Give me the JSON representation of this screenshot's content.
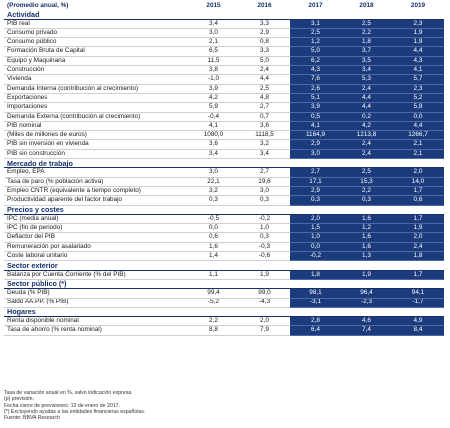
{
  "header": {
    "label": "(Promedio anual, %)",
    "years": [
      "2015",
      "2016",
      "2017",
      "2018",
      "2019"
    ]
  },
  "colors": {
    "forecast_bg": "#1b3b7d",
    "section_text": "#16306e"
  },
  "rows": [
    {
      "type": "section",
      "label": "Actividad"
    },
    {
      "type": "data",
      "level": 0,
      "label": "PIB real",
      "values": [
        "3,4",
        "3,3",
        "3,1",
        "2,5",
        "2,3"
      ]
    },
    {
      "type": "data",
      "level": 1,
      "label": "Consumo privado",
      "values": [
        "3,0",
        "2,9",
        "2,5",
        "2,2",
        "1,9"
      ]
    },
    {
      "type": "data",
      "level": 1,
      "label": "Consumo público",
      "values": [
        "2,1",
        "0,8",
        "1,2",
        "1,8",
        "1,9"
      ]
    },
    {
      "type": "data",
      "level": 1,
      "label": "Formación Bruta de Capital",
      "values": [
        "6,5",
        "3,3",
        "5,0",
        "3,7",
        "4,4"
      ]
    },
    {
      "type": "data",
      "level": 2,
      "label": "Equipo y Maquinaria",
      "values": [
        "11,5",
        "5,0",
        "6,2",
        "3,5",
        "4,3"
      ]
    },
    {
      "type": "data",
      "level": 2,
      "label": "Construcción",
      "values": [
        "3,8",
        "2,4",
        "4,3",
        "3,4",
        "4,1"
      ]
    },
    {
      "type": "data",
      "level": 2,
      "label": "Vivienda",
      "values": [
        "-1,0",
        "4,4",
        "7,6",
        "5,3",
        "5,7"
      ]
    },
    {
      "type": "data",
      "level": 0,
      "label": "Demanda Interna (contribución al crecimiento)",
      "values": [
        "3,9",
        "2,5",
        "2,6",
        "2,4",
        "2,3"
      ]
    },
    {
      "type": "data",
      "level": 1,
      "label": "Exportaciones",
      "values": [
        "4,2",
        "4,8",
        "5,1",
        "4,4",
        "5,2"
      ]
    },
    {
      "type": "data",
      "level": 1,
      "label": "Importaciones",
      "values": [
        "5,9",
        "2,7",
        "3,9",
        "4,4",
        "5,8"
      ]
    },
    {
      "type": "data",
      "level": 0,
      "label": "Demanda Externa (contribución al crecimiento)",
      "values": [
        "-0,4",
        "0,7",
        "0,5",
        "0,2",
        "0,0"
      ]
    },
    {
      "type": "data",
      "level": 0,
      "label": "PIB nominal",
      "values": [
        "4,1",
        "3,6",
        "4,1",
        "4,2",
        "4,4"
      ]
    },
    {
      "type": "data",
      "level": 1,
      "label": "(Miles de millones de euros)",
      "values": [
        "1080,0",
        "1118,5",
        "1164,9",
        "1213,8",
        "1266,7"
      ]
    },
    {
      "type": "data",
      "level": 0,
      "label": "PIB sin inversión en vivienda",
      "values": [
        "3,6",
        "3,2",
        "2,9",
        "2,4",
        "2,1"
      ]
    },
    {
      "type": "data",
      "level": 0,
      "label": "PIB sin construcción",
      "values": [
        "3,4",
        "3,4",
        "3,0",
        "2,4",
        "2,1"
      ]
    },
    {
      "type": "section",
      "label": "Mercado de trabajo"
    },
    {
      "type": "data",
      "level": 0,
      "label": "Empleo, EPA",
      "values": [
        "3,0",
        "2,7",
        "2,7",
        "2,5",
        "2,0"
      ]
    },
    {
      "type": "data",
      "level": 0,
      "label": "Tasa de paro (% población activa)",
      "values": [
        "22,1",
        "19,6",
        "17,1",
        "15,3",
        "14,0"
      ]
    },
    {
      "type": "data",
      "level": 0,
      "label": "Empleo CNTR (equivalente a tiempo completo)",
      "values": [
        "3,2",
        "3,0",
        "2,9",
        "2,2",
        "1,7"
      ]
    },
    {
      "type": "data",
      "level": 0,
      "label": "Productividad aparente del factor trabajo",
      "values": [
        "0,3",
        "0,3",
        "0,3",
        "0,3",
        "0,6"
      ]
    },
    {
      "type": "section",
      "label": "Precios y costes"
    },
    {
      "type": "data",
      "level": 0,
      "label": "IPC (media anual)",
      "values": [
        "-0,5",
        "-0,2",
        "2,0",
        "1,6",
        "1,7"
      ]
    },
    {
      "type": "data",
      "level": 0,
      "label": "IPC (fin de periodo)",
      "values": [
        "0,0",
        "1,0",
        "1,5",
        "1,2",
        "1,9"
      ]
    },
    {
      "type": "data",
      "level": 0,
      "label": "Deflactor del PIB",
      "values": [
        "0,6",
        "0,3",
        "1,0",
        "1,6",
        "2,0"
      ]
    },
    {
      "type": "data",
      "level": 0,
      "label": "Remuneración por asalariado",
      "values": [
        "1,6",
        "-0,3",
        "0,0",
        "1,6",
        "2,4"
      ]
    },
    {
      "type": "data",
      "level": 0,
      "label": "Coste laboral unitario",
      "values": [
        "1,4",
        "-0,6",
        "-0,2",
        "1,3",
        "1,8"
      ]
    },
    {
      "type": "section",
      "label": "Sector exterior"
    },
    {
      "type": "data",
      "level": 0,
      "label": "Balanza por Cuenta Corriente (% del PIB)",
      "values": [
        "1,1",
        "1,9",
        "1,8",
        "1,9",
        "1,7"
      ]
    },
    {
      "type": "section",
      "label": "Sector público (*)"
    },
    {
      "type": "data",
      "level": 0,
      "label": "Deuda (% PIB)",
      "values": [
        "99,4",
        "99,0",
        "98,1",
        "96,4",
        "94,1"
      ]
    },
    {
      "type": "data",
      "level": 0,
      "label": "Saldo AA.PP. (% PIB)",
      "values": [
        "-5,2",
        "-4,3",
        "-3,1",
        "-2,3",
        "-1,7"
      ]
    },
    {
      "type": "section",
      "label": "Hogares"
    },
    {
      "type": "data",
      "level": 0,
      "label": "Renta disponible nominal",
      "values": [
        "2,2",
        "2,0",
        "2,8",
        "4,6",
        "4,9"
      ]
    },
    {
      "type": "data",
      "level": 0,
      "label": "Tasa de ahorro (% renta nominal)",
      "values": [
        "8,8",
        "7,9",
        "6,4",
        "7,4",
        "8,4"
      ]
    }
  ],
  "notes": [
    "Tasa de variación anual en %, salvo indicación expresa.",
    "(p) previsión.",
    "Fecha cierre de previsiones: 12 de enero de 2017.",
    "(*) Excluyendo ayudas a las entidades financieras españolas.",
    "Fuente: BBVA Research"
  ]
}
